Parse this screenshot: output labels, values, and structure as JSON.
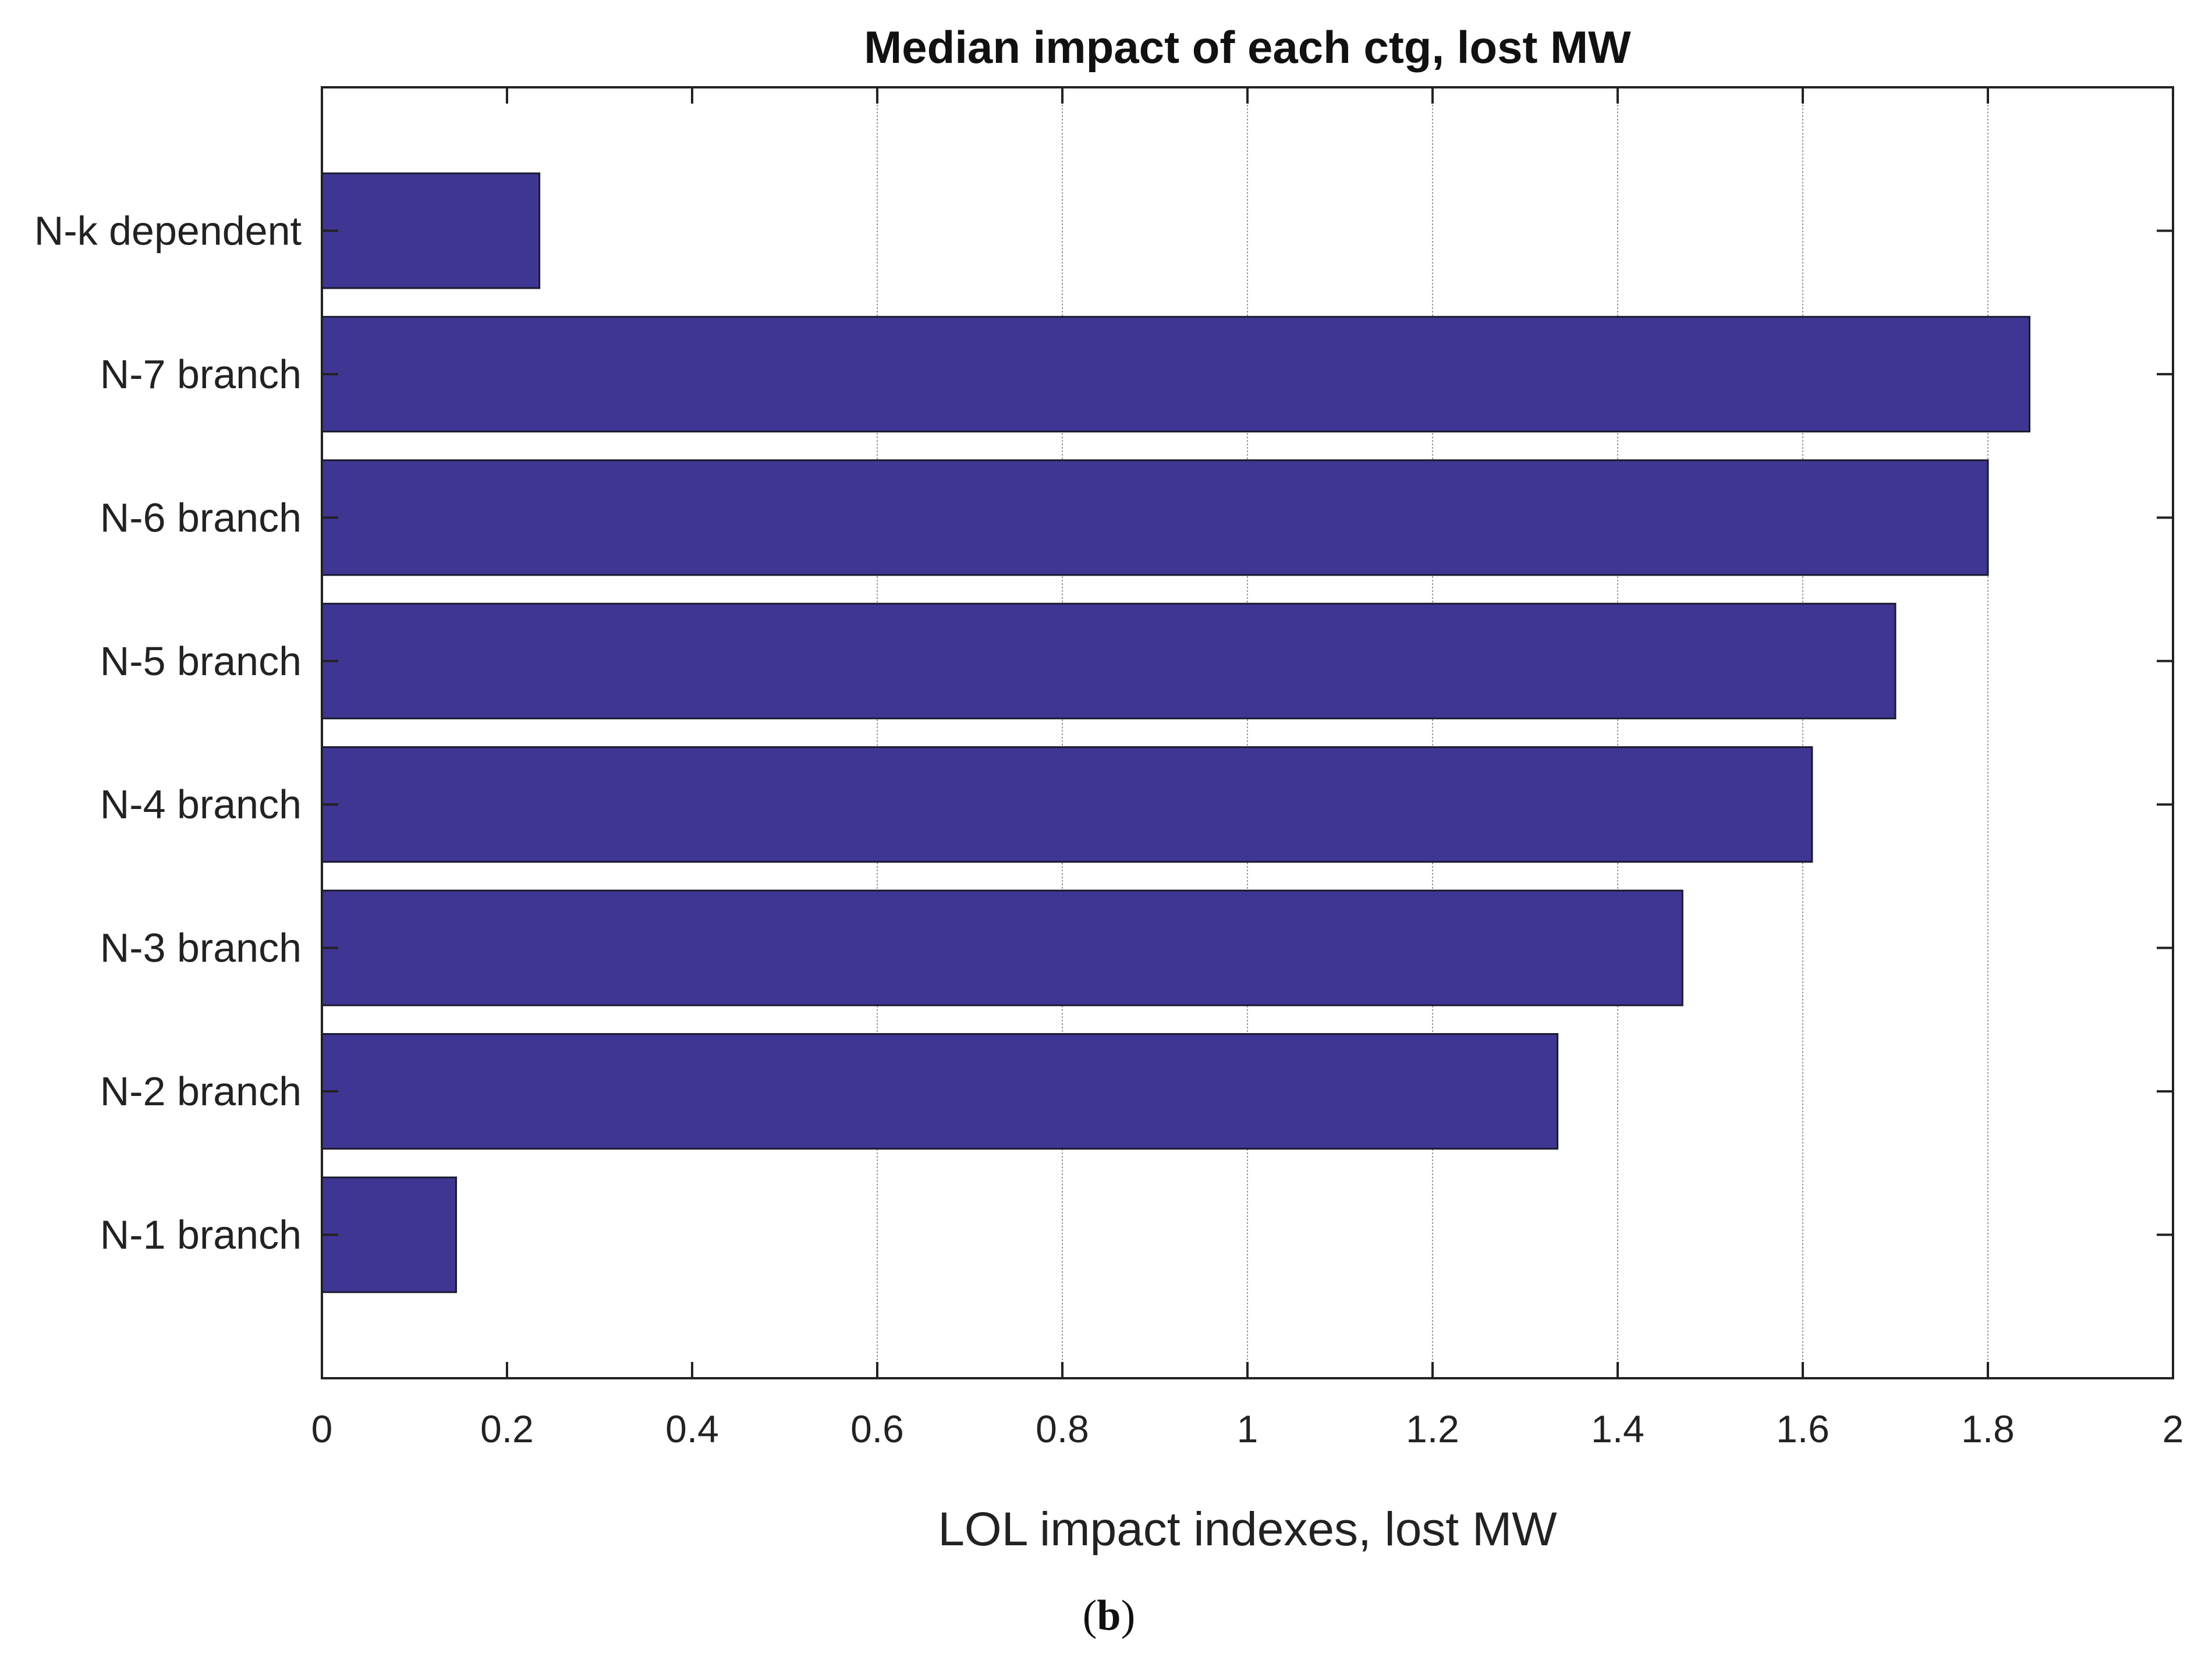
{
  "chart_data": {
    "type": "bar",
    "orientation": "horizontal",
    "title": "Median impact of each ctg, lost MW",
    "xlabel": "LOL impact indexes, lost MW",
    "ylabel": "",
    "xlim": [
      0,
      2
    ],
    "x_ticks": [
      "0",
      "0.2",
      "0.4",
      "0.6",
      "0.8",
      "1",
      "1.2",
      "1.4",
      "1.6",
      "1.8",
      "2"
    ],
    "categories": [
      "N-1 branch",
      "N-2 branch",
      "N-3 branch",
      "N-4 branch",
      "N-5 branch",
      "N-6 branch",
      "N-7 branch",
      "N-k dependent"
    ],
    "values": [
      0.145,
      1.335,
      1.47,
      1.61,
      1.7,
      1.8,
      1.845,
      0.235
    ],
    "bar_color": "#3F3694",
    "grid": "partial vertical gridlines"
  },
  "panel": {
    "open": "(",
    "letter": "b",
    "close": ")"
  }
}
